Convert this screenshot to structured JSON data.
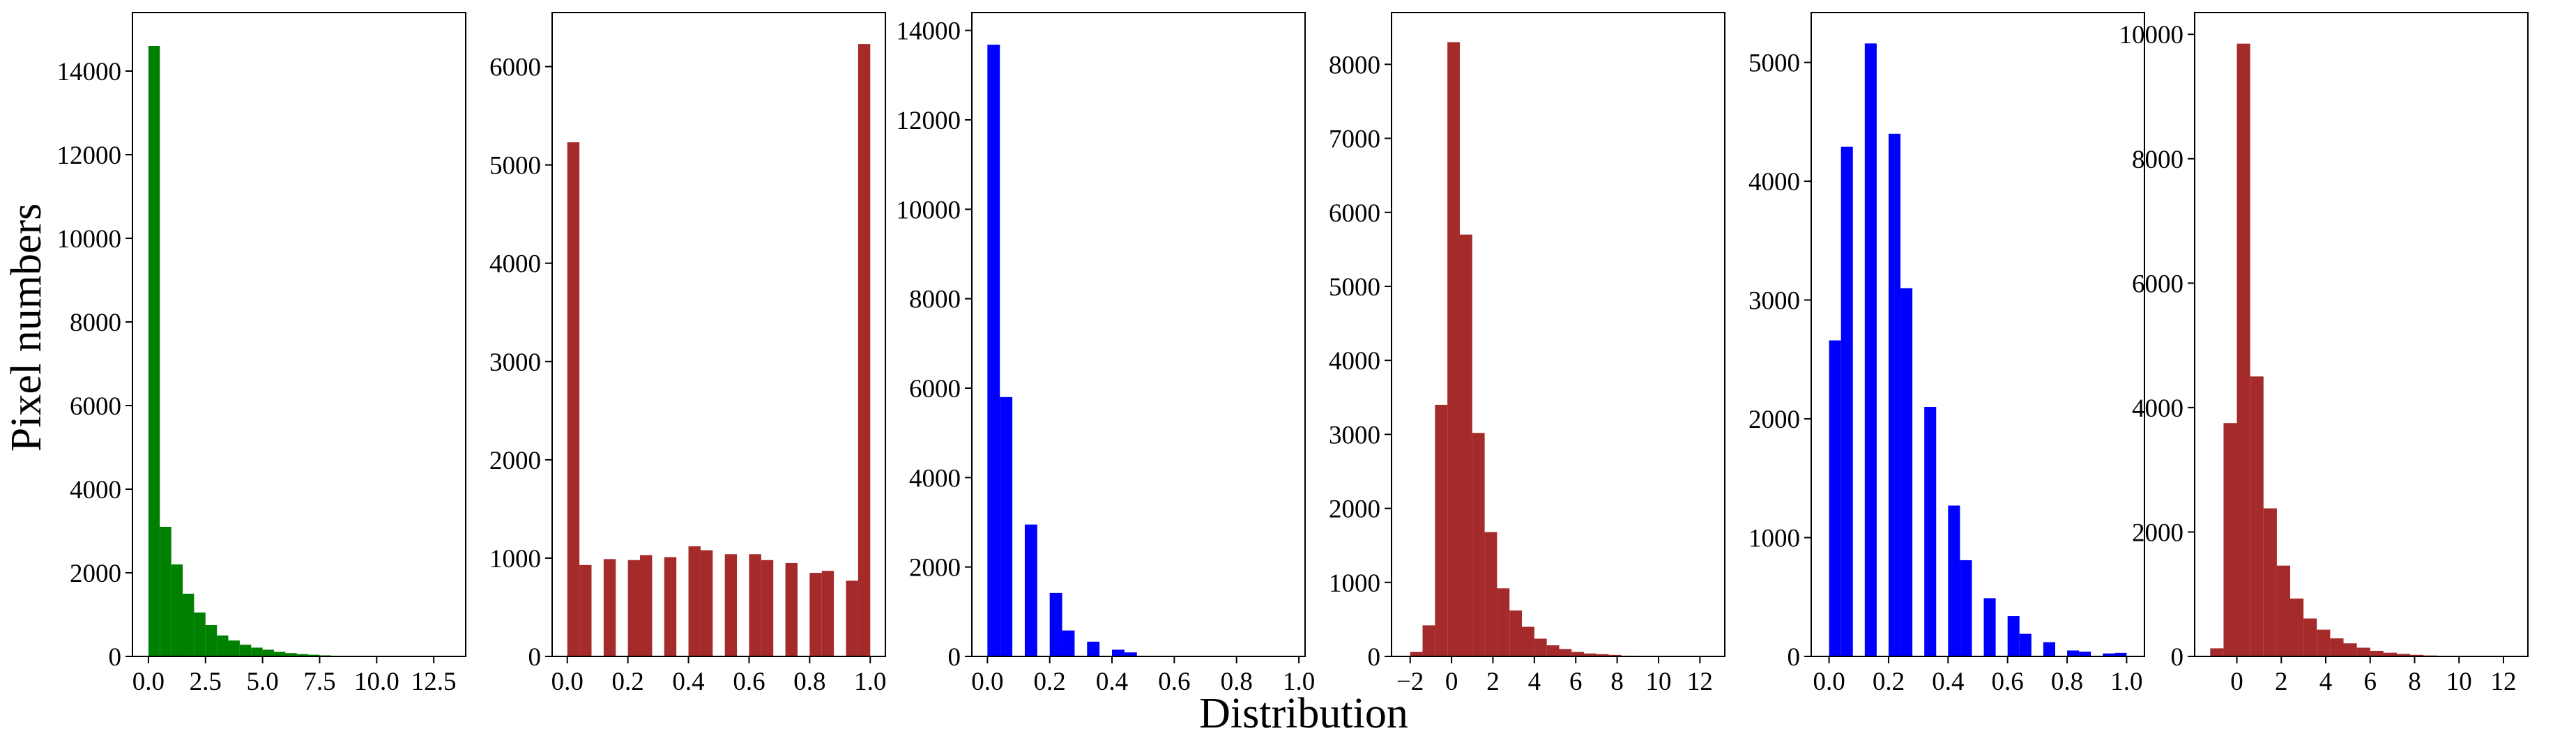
{
  "figure": {
    "ylabel": "Pixel  numbers",
    "xlabel": "Distribution"
  },
  "colors": {
    "green": "#008000",
    "brown": "#a52a2a",
    "blue": "#0000ff"
  },
  "chart_data": [
    {
      "type": "bar",
      "color": "#008000",
      "xlim": [
        -0.7,
        13.9
      ],
      "ylim": [
        0,
        15400
      ],
      "xticks": [
        0.0,
        2.5,
        5.0,
        7.5,
        10.0,
        12.5
      ],
      "xtick_labels": [
        "0.0",
        "2.5",
        "5.0",
        "7.5",
        "10.0",
        "12.5"
      ],
      "yticks": [
        0,
        2000,
        4000,
        6000,
        8000,
        10000,
        12000,
        14000
      ],
      "bin_width": 0.5,
      "x": [
        0.0,
        0.5,
        1.0,
        1.5,
        2.0,
        2.5,
        3.0,
        3.5,
        4.0,
        4.5,
        5.0,
        5.5,
        6.0,
        6.5,
        7.0,
        7.5,
        8.0,
        8.5,
        9.0,
        9.5
      ],
      "values": [
        14600,
        3100,
        2200,
        1500,
        1050,
        750,
        500,
        380,
        280,
        210,
        160,
        110,
        80,
        55,
        40,
        25,
        15,
        10,
        5,
        3
      ]
    },
    {
      "type": "bar",
      "color": "#a52a2a",
      "xlim": [
        -0.05,
        1.05
      ],
      "ylim": [
        0,
        6550
      ],
      "xticks": [
        0.0,
        0.2,
        0.4,
        0.6,
        0.8,
        1.0
      ],
      "xtick_labels": [
        "0.0",
        "0.2",
        "0.4",
        "0.6",
        "0.8",
        "1.0"
      ],
      "yticks": [
        0,
        1000,
        2000,
        3000,
        4000,
        5000,
        6000
      ],
      "bin_width": 0.04,
      "x": [
        0.0,
        0.04,
        0.12,
        0.2,
        0.24,
        0.32,
        0.4,
        0.44,
        0.52,
        0.6,
        0.64,
        0.72,
        0.8,
        0.84,
        0.92,
        0.96
      ],
      "values": [
        5230,
        930,
        990,
        980,
        1030,
        1010,
        1120,
        1080,
        1040,
        1040,
        980,
        950,
        850,
        870,
        770,
        6230
      ]
    },
    {
      "type": "bar",
      "color": "#0000ff",
      "xlim": [
        -0.05,
        1.02
      ],
      "ylim": [
        0,
        14400
      ],
      "xticks": [
        0.0,
        0.2,
        0.4,
        0.6,
        0.8,
        1.0
      ],
      "xtick_labels": [
        "0.0",
        "0.2",
        "0.4",
        "0.6",
        "0.8",
        "1.0"
      ],
      "yticks": [
        0,
        2000,
        4000,
        6000,
        8000,
        10000,
        12000,
        14000
      ],
      "bin_width": 0.04,
      "x": [
        0.0,
        0.04,
        0.12,
        0.2,
        0.24,
        0.32,
        0.4,
        0.44
      ],
      "values": [
        13680,
        5800,
        2950,
        1420,
        580,
        330,
        150,
        90
      ]
    },
    {
      "type": "bar",
      "color": "#a52a2a",
      "xlim": [
        -2.9,
        13.2
      ],
      "ylim": [
        0,
        8700
      ],
      "xticks": [
        -2,
        0,
        2,
        4,
        6,
        8,
        10,
        12
      ],
      "xtick_labels": [
        "−2",
        "0",
        "2",
        "4",
        "6",
        "8",
        "10",
        "12"
      ],
      "yticks": [
        0,
        1000,
        2000,
        3000,
        4000,
        5000,
        6000,
        7000,
        8000
      ],
      "bin_width": 0.6,
      "x": [
        -2.0,
        -1.4,
        -0.8,
        -0.2,
        0.4,
        1.0,
        1.6,
        2.2,
        2.8,
        3.4,
        4.0,
        4.6,
        5.2,
        5.8,
        6.4,
        7.0,
        7.6,
        8.2,
        8.8,
        9.4
      ],
      "values": [
        60,
        420,
        3400,
        8300,
        5700,
        3020,
        1680,
        920,
        620,
        400,
        240,
        150,
        100,
        60,
        40,
        30,
        20,
        10,
        5,
        3
      ]
    },
    {
      "type": "bar",
      "color": "#0000ff",
      "xlim": [
        -0.06,
        1.06
      ],
      "ylim": [
        0,
        5420
      ],
      "xticks": [
        0.0,
        0.2,
        0.4,
        0.6,
        0.8,
        1.0
      ],
      "xtick_labels": [
        "0.0",
        "0.2",
        "0.4",
        "0.6",
        "0.8",
        "1.0"
      ],
      "yticks": [
        0,
        1000,
        2000,
        3000,
        4000,
        5000
      ],
      "bin_width": 0.04,
      "x": [
        0.0,
        0.04,
        0.12,
        0.2,
        0.24,
        0.32,
        0.4,
        0.44,
        0.52,
        0.6,
        0.64,
        0.72,
        0.8,
        0.84,
        0.92,
        0.96
      ],
      "values": [
        2660,
        4290,
        5160,
        4400,
        3100,
        2100,
        1270,
        810,
        490,
        340,
        190,
        120,
        50,
        40,
        25,
        30
      ]
    },
    {
      "type": "bar",
      "color": "#a52a2a",
      "xlim": [
        -1.9,
        13.1
      ],
      "ylim": [
        0,
        10350
      ],
      "xticks": [
        0,
        2,
        4,
        6,
        8,
        10,
        12
      ],
      "xtick_labels": [
        "0",
        "2",
        "4",
        "6",
        "8",
        "10",
        "12"
      ],
      "yticks": [
        0,
        2000,
        4000,
        6000,
        8000,
        10000
      ],
      "bin_width": 0.6,
      "x": [
        -1.2,
        -0.6,
        0.0,
        0.6,
        1.2,
        1.8,
        2.4,
        3.0,
        3.6,
        4.2,
        4.8,
        5.4,
        6.0,
        6.6,
        7.2,
        7.8,
        8.4,
        9.0
      ],
      "values": [
        130,
        3750,
        9850,
        4500,
        2380,
        1460,
        930,
        610,
        430,
        290,
        210,
        140,
        90,
        60,
        40,
        25,
        15,
        8
      ]
    }
  ]
}
